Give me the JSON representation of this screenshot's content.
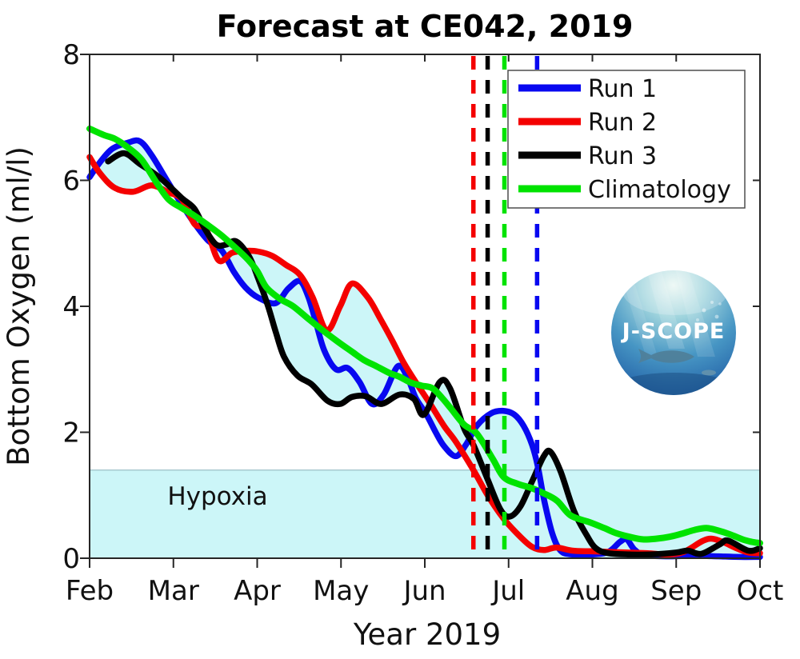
{
  "title": "Forecast at CE042, 2019",
  "y_axis": {
    "label": "Bottom Oxygen (ml/l)",
    "ticks": [
      0,
      2,
      4,
      6,
      8
    ],
    "lim": [
      0,
      8
    ]
  },
  "x_axis": {
    "label": "Year 2019",
    "ticklabels": [
      "Feb",
      "Mar",
      "Apr",
      "May",
      "Jun",
      "Jul",
      "Aug",
      "Sep",
      "Oct"
    ]
  },
  "hypoxia_region": {
    "label": "Hypoxia",
    "threshold_mll": 1.4
  },
  "legend": {
    "items": [
      {
        "label": "Run 1",
        "color": "#0808f0"
      },
      {
        "label": "Run 2",
        "color": "#f40000"
      },
      {
        "label": "Run 3",
        "color": "#000000"
      },
      {
        "label": "Climatology",
        "color": "#00e300"
      }
    ]
  },
  "logo": {
    "text": "J-SCOPE"
  },
  "colors": {
    "envelope_fill": "#ccf6f8",
    "hypoxia_fill": "#ccf6f8",
    "threshold_line": "#a9c9cf",
    "axis": "#262626",
    "text": "#111111"
  },
  "chart_data": {
    "type": "line",
    "title": "Forecast at CE042, 2019",
    "xlabel": "Year 2019",
    "ylabel": "Bottom Oxygen (ml/l)",
    "x_unit": "month index (0 = Feb, 1 = Mar, 2 = Apr, 3 = May, 4 = Jun, 5 = Jul, 6 = Aug, 7 = Sep, 8 = Oct)",
    "xlim": [
      0,
      8
    ],
    "ylim": [
      0,
      8
    ],
    "x_ticklabels": [
      "Feb",
      "Mar",
      "Apr",
      "May",
      "Jun",
      "Jul",
      "Aug",
      "Sep",
      "Oct"
    ],
    "y_ticks": [
      0,
      2,
      4,
      6,
      8
    ],
    "grid": false,
    "legend_position": "upper right inside",
    "hypoxia_threshold": 1.4,
    "envelope_fill_between_runs": true,
    "series": [
      {
        "name": "Run 1",
        "color": "#0808f0",
        "points": [
          [
            0.0,
            6.05
          ],
          [
            0.12,
            6.28
          ],
          [
            0.27,
            6.5
          ],
          [
            0.46,
            6.6
          ],
          [
            0.6,
            6.62
          ],
          [
            0.74,
            6.4
          ],
          [
            0.94,
            5.96
          ],
          [
            1.1,
            5.62
          ],
          [
            1.25,
            5.32
          ],
          [
            1.41,
            5.05
          ],
          [
            1.58,
            4.88
          ],
          [
            1.72,
            4.55
          ],
          [
            1.86,
            4.3
          ],
          [
            2.01,
            4.14
          ],
          [
            2.22,
            4.05
          ],
          [
            2.37,
            4.28
          ],
          [
            2.51,
            4.4
          ],
          [
            2.61,
            4.15
          ],
          [
            2.7,
            3.75
          ],
          [
            2.8,
            3.3
          ],
          [
            2.94,
            3.0
          ],
          [
            3.08,
            3.02
          ],
          [
            3.22,
            2.8
          ],
          [
            3.37,
            2.45
          ],
          [
            3.51,
            2.6
          ],
          [
            3.68,
            3.05
          ],
          [
            3.8,
            2.85
          ],
          [
            3.89,
            2.55
          ],
          [
            4.02,
            2.28
          ],
          [
            4.13,
            2.0
          ],
          [
            4.23,
            1.78
          ],
          [
            4.37,
            1.62
          ],
          [
            4.49,
            1.8
          ],
          [
            4.62,
            2.1
          ],
          [
            4.79,
            2.3
          ],
          [
            4.94,
            2.34
          ],
          [
            5.07,
            2.28
          ],
          [
            5.18,
            2.1
          ],
          [
            5.28,
            1.8
          ],
          [
            5.35,
            1.45
          ],
          [
            5.42,
            0.95
          ],
          [
            5.52,
            0.4
          ],
          [
            5.62,
            0.12
          ],
          [
            5.76,
            0.06
          ],
          [
            5.99,
            0.06
          ],
          [
            6.19,
            0.1
          ],
          [
            6.33,
            0.26
          ],
          [
            6.41,
            0.3
          ],
          [
            6.5,
            0.14
          ],
          [
            6.62,
            0.05
          ],
          [
            6.9,
            0.03
          ],
          [
            7.2,
            0.04
          ],
          [
            7.5,
            0.03
          ],
          [
            7.75,
            0.02
          ],
          [
            8.0,
            0.02
          ]
        ]
      },
      {
        "name": "Run 2",
        "color": "#f40000",
        "points": [
          [
            0.0,
            6.37
          ],
          [
            0.12,
            6.12
          ],
          [
            0.3,
            5.88
          ],
          [
            0.52,
            5.82
          ],
          [
            0.74,
            5.92
          ],
          [
            0.94,
            5.81
          ],
          [
            1.1,
            5.7
          ],
          [
            1.25,
            5.31
          ],
          [
            1.39,
            5.22
          ],
          [
            1.54,
            4.73
          ],
          [
            1.7,
            4.85
          ],
          [
            1.86,
            4.88
          ],
          [
            2.01,
            4.87
          ],
          [
            2.18,
            4.8
          ],
          [
            2.34,
            4.66
          ],
          [
            2.51,
            4.5
          ],
          [
            2.66,
            4.15
          ],
          [
            2.83,
            3.62
          ],
          [
            2.99,
            4.0
          ],
          [
            3.13,
            4.36
          ],
          [
            3.32,
            4.14
          ],
          [
            3.47,
            3.8
          ],
          [
            3.61,
            3.46
          ],
          [
            3.75,
            3.1
          ],
          [
            3.89,
            2.8
          ],
          [
            4.06,
            2.46
          ],
          [
            4.23,
            2.1
          ],
          [
            4.37,
            1.85
          ],
          [
            4.58,
            1.4
          ],
          [
            4.75,
            1.0
          ],
          [
            4.94,
            0.63
          ],
          [
            5.14,
            0.34
          ],
          [
            5.28,
            0.18
          ],
          [
            5.42,
            0.13
          ],
          [
            5.57,
            0.17
          ],
          [
            5.76,
            0.12
          ],
          [
            5.97,
            0.11
          ],
          [
            6.19,
            0.1
          ],
          [
            6.42,
            0.09
          ],
          [
            6.66,
            0.08
          ],
          [
            6.9,
            0.06
          ],
          [
            7.09,
            0.1
          ],
          [
            7.31,
            0.27
          ],
          [
            7.43,
            0.31
          ],
          [
            7.57,
            0.25
          ],
          [
            7.7,
            0.17
          ],
          [
            7.86,
            0.09
          ],
          [
            8.0,
            0.08
          ]
        ]
      },
      {
        "name": "Run 3",
        "color": "#000000",
        "points": [
          [
            0.22,
            6.3
          ],
          [
            0.41,
            6.43
          ],
          [
            0.6,
            6.26
          ],
          [
            0.84,
            6.04
          ],
          [
            1.1,
            5.72
          ],
          [
            1.25,
            5.55
          ],
          [
            1.38,
            5.22
          ],
          [
            1.51,
            4.98
          ],
          [
            1.63,
            4.98
          ],
          [
            1.75,
            5.03
          ],
          [
            1.9,
            4.8
          ],
          [
            2.01,
            4.45
          ],
          [
            2.13,
            4.0
          ],
          [
            2.22,
            3.6
          ],
          [
            2.32,
            3.2
          ],
          [
            2.48,
            2.9
          ],
          [
            2.65,
            2.76
          ],
          [
            2.84,
            2.5
          ],
          [
            2.99,
            2.45
          ],
          [
            3.13,
            2.56
          ],
          [
            3.3,
            2.57
          ],
          [
            3.48,
            2.45
          ],
          [
            3.7,
            2.6
          ],
          [
            3.87,
            2.53
          ],
          [
            3.99,
            2.28
          ],
          [
            4.18,
            2.8
          ],
          [
            4.3,
            2.7
          ],
          [
            4.47,
            2.06
          ],
          [
            4.58,
            1.8
          ],
          [
            4.75,
            1.25
          ],
          [
            4.9,
            0.78
          ],
          [
            5.01,
            0.66
          ],
          [
            5.14,
            0.82
          ],
          [
            5.28,
            1.22
          ],
          [
            5.42,
            1.62
          ],
          [
            5.5,
            1.69
          ],
          [
            5.62,
            1.38
          ],
          [
            5.78,
            0.75
          ],
          [
            5.93,
            0.37
          ],
          [
            6.04,
            0.16
          ],
          [
            6.19,
            0.08
          ],
          [
            6.45,
            0.06
          ],
          [
            6.7,
            0.06
          ],
          [
            7.0,
            0.09
          ],
          [
            7.14,
            0.12
          ],
          [
            7.3,
            0.07
          ],
          [
            7.52,
            0.22
          ],
          [
            7.62,
            0.28
          ],
          [
            7.86,
            0.12
          ],
          [
            8.0,
            0.16
          ]
        ]
      },
      {
        "name": "Climatology",
        "color": "#00e300",
        "points": [
          [
            0.0,
            6.82
          ],
          [
            0.17,
            6.72
          ],
          [
            0.3,
            6.66
          ],
          [
            0.46,
            6.52
          ],
          [
            0.62,
            6.33
          ],
          [
            0.79,
            5.98
          ],
          [
            0.94,
            5.7
          ],
          [
            1.1,
            5.56
          ],
          [
            1.25,
            5.44
          ],
          [
            1.41,
            5.29
          ],
          [
            1.58,
            5.12
          ],
          [
            1.75,
            4.92
          ],
          [
            1.89,
            4.74
          ],
          [
            2.0,
            4.56
          ],
          [
            2.11,
            4.3
          ],
          [
            2.27,
            4.12
          ],
          [
            2.43,
            4.0
          ],
          [
            2.63,
            3.78
          ],
          [
            2.8,
            3.6
          ],
          [
            2.96,
            3.44
          ],
          [
            3.13,
            3.28
          ],
          [
            3.27,
            3.15
          ],
          [
            3.42,
            3.05
          ],
          [
            3.58,
            2.94
          ],
          [
            3.7,
            2.88
          ],
          [
            3.83,
            2.79
          ],
          [
            3.96,
            2.74
          ],
          [
            4.09,
            2.7
          ],
          [
            4.21,
            2.54
          ],
          [
            4.31,
            2.38
          ],
          [
            4.47,
            2.12
          ],
          [
            4.62,
            1.98
          ],
          [
            4.81,
            1.58
          ],
          [
            4.94,
            1.29
          ],
          [
            5.11,
            1.18
          ],
          [
            5.26,
            1.12
          ],
          [
            5.42,
            1.03
          ],
          [
            5.58,
            0.91
          ],
          [
            5.74,
            0.68
          ],
          [
            5.97,
            0.57
          ],
          [
            6.14,
            0.48
          ],
          [
            6.28,
            0.4
          ],
          [
            6.44,
            0.34
          ],
          [
            6.6,
            0.3
          ],
          [
            6.76,
            0.31
          ],
          [
            6.92,
            0.34
          ],
          [
            7.07,
            0.39
          ],
          [
            7.22,
            0.45
          ],
          [
            7.36,
            0.48
          ],
          [
            7.5,
            0.44
          ],
          [
            7.64,
            0.38
          ],
          [
            7.79,
            0.3
          ],
          [
            7.9,
            0.26
          ],
          [
            8.0,
            0.24
          ]
        ]
      }
    ],
    "vertical_dashed_lines": [
      {
        "series": "Run 2",
        "color": "#f40000",
        "x": 4.58
      },
      {
        "series": "Run 3",
        "color": "#000000",
        "x": 4.75
      },
      {
        "series": "Climatology",
        "color": "#00e300",
        "x": 4.95
      },
      {
        "series": "Run 1",
        "color": "#0808f0",
        "x": 5.34
      }
    ]
  }
}
